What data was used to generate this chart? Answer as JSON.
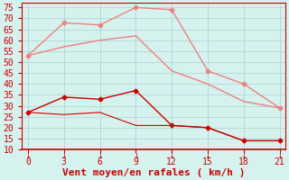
{
  "x": [
    0,
    3,
    6,
    9,
    12,
    15,
    18,
    21
  ],
  "line1_y": [
    53,
    68,
    67,
    75,
    74,
    46,
    40,
    29
  ],
  "line2_y": [
    53,
    57,
    60,
    62,
    46,
    40,
    32,
    29
  ],
  "line3_y": [
    27,
    34,
    33,
    37,
    21,
    20,
    14,
    14
  ],
  "line4_y": [
    27,
    26,
    27,
    21,
    21,
    20,
    14,
    14
  ],
  "color_light": "#f08080",
  "color_dark": "#cc0000",
  "xlabel": "Vent moyen/en rafales ( km/h )",
  "xlim": [
    -0.5,
    21.5
  ],
  "ylim": [
    10,
    77
  ],
  "yticks": [
    10,
    15,
    20,
    25,
    30,
    35,
    40,
    45,
    50,
    55,
    60,
    65,
    70,
    75
  ],
  "xticks": [
    0,
    3,
    6,
    9,
    12,
    15,
    18,
    21
  ],
  "bg_color": "#d5f2ee",
  "grid_color": "#b0d8d4",
  "xlabel_color": "#cc0000",
  "xlabel_fontsize": 8,
  "tick_fontsize": 7
}
